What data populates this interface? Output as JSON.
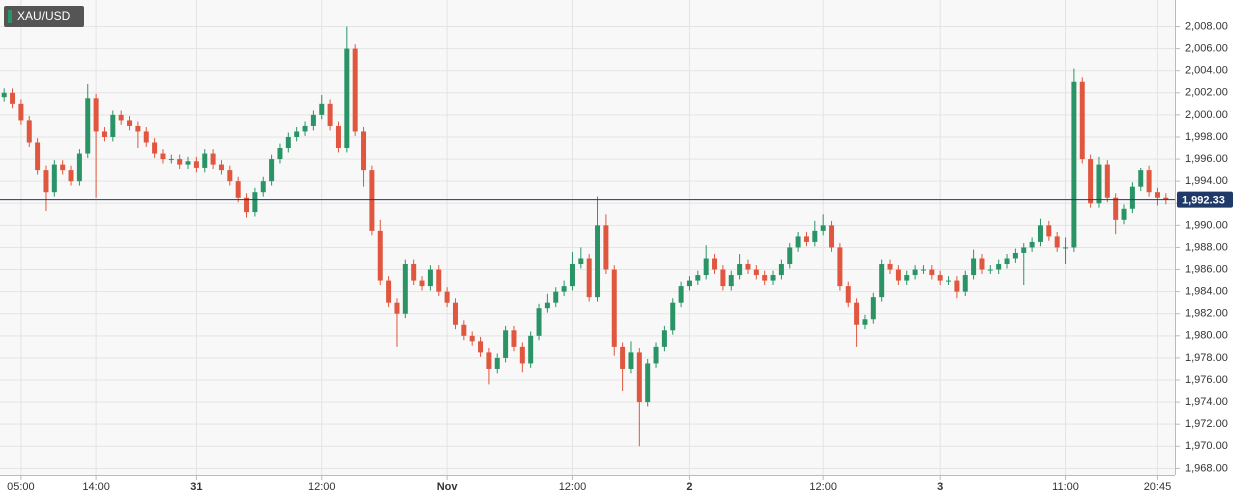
{
  "chart_data": {
    "type": "candlestick",
    "ylim": [
      1967.4,
      2010.4
    ],
    "yticks": [
      {
        "value": 1968,
        "label": "1,968.00"
      },
      {
        "value": 1970,
        "label": "1,970.00"
      },
      {
        "value": 1972,
        "label": "1,972.00"
      },
      {
        "value": 1974,
        "label": "1,974.00"
      },
      {
        "value": 1976,
        "label": "1,976.00"
      },
      {
        "value": 1978,
        "label": "1,978.00"
      },
      {
        "value": 1980,
        "label": "1,980.00"
      },
      {
        "value": 1982,
        "label": "1,982.00"
      },
      {
        "value": 1984,
        "label": "1,984.00"
      },
      {
        "value": 1986,
        "label": "1,986.00"
      },
      {
        "value": 1988,
        "label": "1,988.00"
      },
      {
        "value": 1990,
        "label": "1,990.00"
      },
      {
        "value": 1992,
        "label": "1,992.00"
      },
      {
        "value": 1994,
        "label": "1,994.00"
      },
      {
        "value": 1996,
        "label": "1,996.00"
      },
      {
        "value": 1998,
        "label": "1,998.00"
      },
      {
        "value": 2000,
        "label": "2,000.00"
      },
      {
        "value": 2002,
        "label": "2,002.00"
      },
      {
        "value": 2004,
        "label": "2,004.00"
      },
      {
        "value": 2006,
        "label": "2,006.00"
      },
      {
        "value": 2008,
        "label": "2,008.00"
      }
    ],
    "grid": true,
    "last_price": {
      "value": 1992.33,
      "label": "1,992.33"
    },
    "categories": [
      null,
      null,
      "05:00",
      null,
      null,
      null,
      null,
      null,
      null,
      null,
      null,
      "14:00",
      null,
      null,
      null,
      null,
      null,
      null,
      null,
      null,
      null,
      null,
      null,
      "31",
      null,
      null,
      null,
      null,
      null,
      null,
      null,
      null,
      null,
      null,
      null,
      null,
      null,
      null,
      "12:00",
      null,
      null,
      null,
      null,
      null,
      null,
      null,
      null,
      null,
      null,
      null,
      null,
      null,
      null,
      "Nov",
      null,
      null,
      null,
      null,
      null,
      null,
      null,
      null,
      null,
      null,
      null,
      null,
      null,
      null,
      "12:00",
      null,
      null,
      null,
      null,
      null,
      null,
      null,
      null,
      null,
      null,
      null,
      null,
      null,
      "2",
      null,
      null,
      null,
      null,
      null,
      null,
      null,
      null,
      null,
      null,
      null,
      null,
      null,
      null,
      null,
      "12:00",
      null,
      null,
      null,
      null,
      null,
      null,
      null,
      null,
      null,
      null,
      null,
      null,
      null,
      "3",
      null,
      null,
      null,
      null,
      null,
      null,
      null,
      null,
      null,
      null,
      null,
      null,
      null,
      null,
      "11:00",
      null,
      null,
      null,
      null,
      null,
      null,
      null,
      null,
      null,
      null,
      "20:45",
      null
    ],
    "series": [
      {
        "name": "XAU/USD",
        "up_color": "#2b9467",
        "down_color": "#e0563f",
        "open": [
          2001.6,
          2002.0,
          2001.0,
          1999.5,
          1997.5,
          1995.0,
          1993.0,
          1995.5,
          1995.0,
          1994.0,
          1996.5,
          2001.5,
          1998.5,
          1998.0,
          2000.0,
          1999.5,
          1999.0,
          1998.5,
          1997.5,
          1996.5,
          1996.0,
          1996.0,
          1995.5,
          1995.8,
          1995.2,
          1996.5,
          1995.5,
          1995.0,
          1994.0,
          1992.5,
          1991.2,
          1993.0,
          1994.0,
          1996.0,
          1997.0,
          1998.0,
          1998.5,
          1999.0,
          2000.0,
          2001.0,
          1999.0,
          1997.0,
          2006.0,
          1998.5,
          1995.0,
          1989.5,
          1985.0,
          1983.0,
          1982.0,
          1986.5,
          1985.0,
          1984.5,
          1986.0,
          1984.0,
          1983.0,
          1981.0,
          1980.0,
          1979.5,
          1978.5,
          1977.0,
          1978.0,
          1980.5,
          1979.0,
          1977.5,
          1980.0,
          1982.5,
          1983.0,
          1984.0,
          1984.5,
          1986.5,
          1987.0,
          1983.5,
          1990.0,
          1986.0,
          1979.0,
          1977.0,
          1978.5,
          1974.0,
          1977.5,
          1979.0,
          1980.5,
          1983.0,
          1984.5,
          1985.0,
          1985.5,
          1987.0,
          1986.0,
          1984.5,
          1985.5,
          1986.5,
          1986.0,
          1985.5,
          1985.0,
          1985.5,
          1986.5,
          1988.0,
          1989.0,
          1988.5,
          1989.5,
          1990.0,
          1988.0,
          1984.5,
          1983.0,
          1981.0,
          1981.5,
          1983.5,
          1986.5,
          1986.0,
          1985.0,
          1985.5,
          1986.0,
          1986.0,
          1985.5,
          1985.0,
          1985.0,
          1984.0,
          1985.5,
          1987.0,
          1986.0,
          1986.0,
          1986.5,
          1987.0,
          1987.5,
          1988.0,
          1988.5,
          1990.0,
          1989.0,
          1988.0,
          1988.0,
          2003.0,
          1996.0,
          1992.0,
          1995.5,
          1992.5,
          1990.5,
          1991.5,
          1993.5,
          1995.0,
          1993.0,
          1992.5
        ],
        "high": [
          2002.4,
          2002.4,
          2001.4,
          1999.9,
          1997.9,
          1995.4,
          1995.9,
          1995.9,
          1995.4,
          1996.9,
          2002.8,
          2001.9,
          1998.9,
          2000.4,
          2000.4,
          1999.9,
          1999.4,
          1998.9,
          1997.9,
          1996.9,
          1996.4,
          1996.4,
          1996.2,
          1996.2,
          1996.9,
          1996.9,
          1995.9,
          1995.4,
          1994.4,
          1992.9,
          1993.4,
          1994.4,
          1996.4,
          1997.4,
          1998.4,
          1998.9,
          1999.4,
          2000.4,
          2001.8,
          2001.4,
          1999.4,
          2008.0,
          2006.4,
          1998.9,
          1995.4,
          1990.5,
          1985.4,
          1983.4,
          1986.9,
          1986.9,
          1985.4,
          1986.4,
          1986.4,
          1984.4,
          1983.4,
          1981.4,
          1980.4,
          1979.9,
          1978.9,
          1978.4,
          1980.9,
          1980.9,
          1979.4,
          1980.4,
          1982.9,
          1983.8,
          1984.4,
          1985.0,
          1987.6,
          1988.0,
          1987.4,
          1992.6,
          1991.0,
          1986.4,
          1979.4,
          1979.5,
          1978.9,
          1977.9,
          1979.4,
          1980.9,
          1983.4,
          1984.9,
          1985.4,
          1985.9,
          1988.2,
          1987.4,
          1986.4,
          1985.9,
          1987.4,
          1986.9,
          1986.4,
          1985.9,
          1985.9,
          1986.9,
          1988.4,
          1989.4,
          1989.4,
          1990.4,
          1991.0,
          1990.4,
          1988.4,
          1984.9,
          1983.4,
          1981.9,
          1983.9,
          1986.9,
          1986.9,
          1986.4,
          1985.9,
          1986.4,
          1986.4,
          1986.4,
          1985.9,
          1985.4,
          1985.4,
          1985.9,
          1987.8,
          1987.4,
          1986.4,
          1986.9,
          1987.4,
          1987.9,
          1988.4,
          1988.9,
          1990.6,
          1990.4,
          1989.4,
          1988.9,
          2004.2,
          2003.4,
          1996.4,
          1996.2,
          1995.9,
          1992.9,
          1991.9,
          1993.9,
          1995.2,
          1995.4,
          1993.4,
          1992.9
        ],
        "low": [
          2001.2,
          2000.6,
          1999.1,
          1997.1,
          1994.6,
          1991.3,
          1992.6,
          1994.6,
          1993.6,
          1993.6,
          1996.1,
          1992.5,
          1997.6,
          1997.6,
          1999.1,
          1998.6,
          1997.0,
          1997.1,
          1996.1,
          1995.6,
          1995.6,
          1995.1,
          1995.1,
          1994.8,
          1994.8,
          1995.1,
          1994.6,
          1993.6,
          1992.1,
          1990.7,
          1990.8,
          1992.6,
          1993.6,
          1995.6,
          1996.6,
          1997.6,
          1998.1,
          1998.6,
          1999.6,
          1998.6,
          1996.6,
          1996.6,
          1998.1,
          1993.5,
          1989.1,
          1984.6,
          1982.6,
          1979.0,
          1981.6,
          1984.6,
          1984.1,
          1984.1,
          1983.6,
          1982.6,
          1980.6,
          1979.6,
          1979.1,
          1978.1,
          1975.6,
          1976.6,
          1977.6,
          1978.6,
          1976.7,
          1977.1,
          1979.6,
          1982.1,
          1982.6,
          1983.6,
          1984.1,
          1986.1,
          1983.1,
          1983.1,
          1985.6,
          1978.2,
          1975.0,
          1976.6,
          1970.0,
          1973.6,
          1977.1,
          1978.6,
          1980.1,
          1982.6,
          1984.1,
          1984.6,
          1985.1,
          1985.6,
          1984.1,
          1984.1,
          1985.1,
          1985.6,
          1985.1,
          1984.6,
          1984.6,
          1985.1,
          1986.1,
          1987.6,
          1988.1,
          1988.1,
          1989.1,
          1987.6,
          1984.1,
          1982.6,
          1979.0,
          1980.6,
          1981.1,
          1983.1,
          1985.6,
          1984.6,
          1984.6,
          1985.1,
          1985.6,
          1985.1,
          1984.6,
          1984.6,
          1983.4,
          1983.6,
          1985.1,
          1985.6,
          1985.6,
          1985.6,
          1986.1,
          1986.6,
          1984.6,
          1987.6,
          1988.1,
          1988.6,
          1987.6,
          1986.5,
          1987.6,
          1995.6,
          1991.6,
          1991.6,
          1992.1,
          1989.2,
          1990.1,
          1991.1,
          1993.1,
          1992.6,
          1991.8,
          1991.9
        ],
        "close": [
          2002.0,
          2001.0,
          1999.5,
          1997.5,
          1995.0,
          1993.0,
          1995.5,
          1995.0,
          1994.0,
          1996.5,
          2001.5,
          1998.5,
          1998.0,
          2000.0,
          1999.5,
          1999.0,
          1998.5,
          1997.5,
          1996.5,
          1996.0,
          1996.0,
          1995.5,
          1995.8,
          1995.2,
          1996.5,
          1995.5,
          1995.0,
          1994.0,
          1992.5,
          1991.2,
          1993.0,
          1994.0,
          1996.0,
          1997.0,
          1998.0,
          1998.5,
          1999.0,
          2000.0,
          2001.0,
          1999.0,
          1997.0,
          2006.0,
          1998.5,
          1995.0,
          1989.5,
          1985.0,
          1983.0,
          1982.0,
          1986.5,
          1985.0,
          1984.5,
          1986.0,
          1984.0,
          1983.0,
          1981.0,
          1980.0,
          1979.5,
          1978.5,
          1977.0,
          1978.0,
          1980.5,
          1979.0,
          1977.5,
          1980.0,
          1982.5,
          1983.0,
          1984.0,
          1984.5,
          1986.5,
          1987.0,
          1983.5,
          1990.0,
          1986.0,
          1979.0,
          1977.0,
          1978.5,
          1974.0,
          1977.5,
          1979.0,
          1980.5,
          1983.0,
          1984.5,
          1985.0,
          1985.5,
          1987.0,
          1986.0,
          1984.5,
          1985.5,
          1986.5,
          1986.0,
          1985.5,
          1985.0,
          1985.5,
          1986.5,
          1988.0,
          1989.0,
          1988.5,
          1989.5,
          1990.0,
          1988.0,
          1984.5,
          1983.0,
          1981.0,
          1981.5,
          1983.5,
          1986.5,
          1986.0,
          1985.0,
          1985.5,
          1986.0,
          1986.0,
          1985.5,
          1985.0,
          1985.0,
          1984.0,
          1985.5,
          1987.0,
          1986.0,
          1986.0,
          1986.5,
          1987.0,
          1987.5,
          1988.0,
          1988.5,
          1990.0,
          1989.0,
          1988.0,
          1988.0,
          2003.0,
          1996.0,
          1992.0,
          1995.5,
          1992.5,
          1990.5,
          1991.5,
          1993.5,
          1995.0,
          1993.0,
          1992.5,
          1992.3
        ]
      }
    ]
  }
}
